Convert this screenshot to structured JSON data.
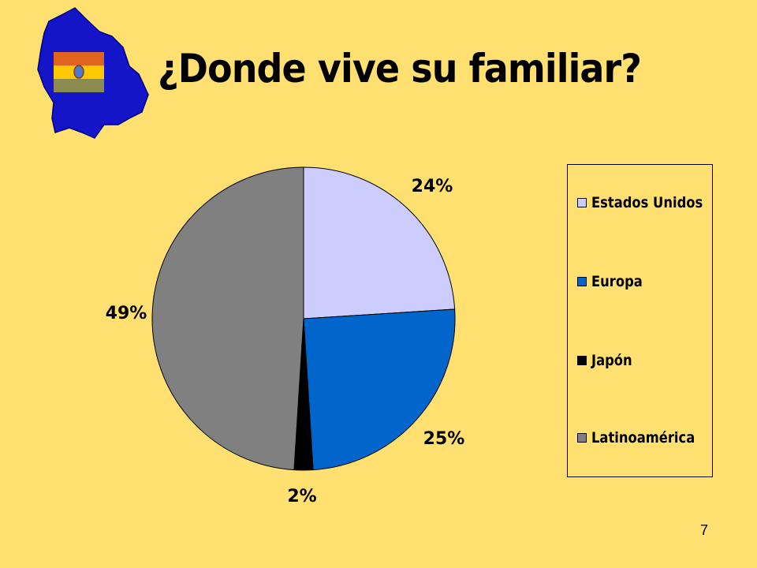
{
  "slide": {
    "page_number": "7"
  },
  "colors": {
    "background": "#FFE070",
    "map_blue": "#1414C8",
    "flag_red": "#E06420",
    "flag_yellow": "#FFC800",
    "flag_green": "#8C8C50"
  },
  "chart_data": {
    "type": "pie",
    "title": "¿Donde vive su familiar?",
    "categories": [
      "Estados Unidos",
      "Europa",
      "Japón",
      "Latinoamérica"
    ],
    "values": [
      24,
      25,
      2,
      49
    ],
    "data_labels": [
      "24%",
      "25%",
      "2%",
      "49%"
    ],
    "colors": [
      "#CCCCFF",
      "#0066CC",
      "#000000",
      "#808080"
    ],
    "legend_position": "right"
  }
}
